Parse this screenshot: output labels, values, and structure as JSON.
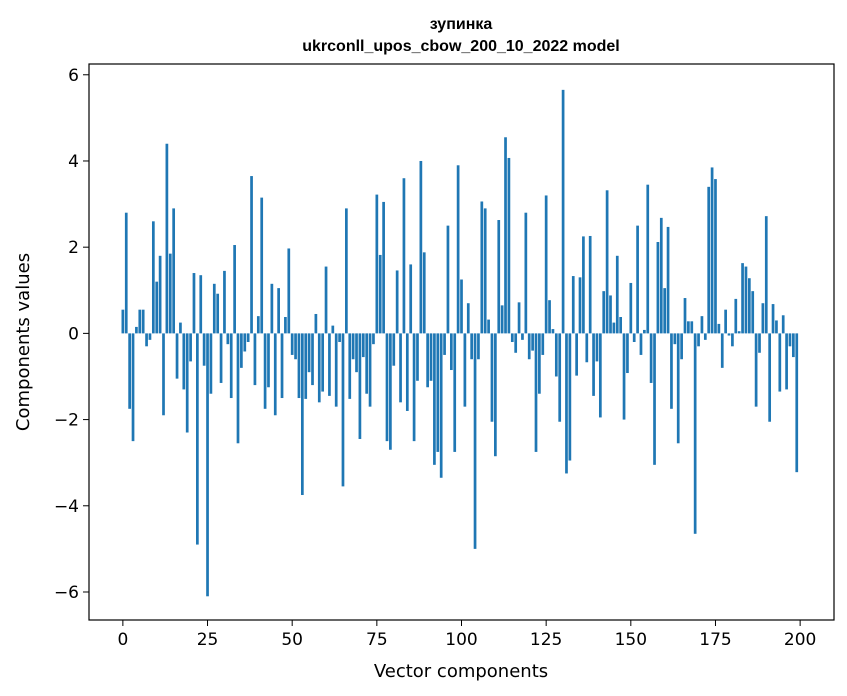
{
  "chart_data": {
    "type": "bar",
    "title_line1": "зупинка",
    "title_line2": "ukrconll_upos_cbow_200_10_2022 model",
    "xlabel": "Vector components",
    "ylabel": "Components values",
    "xlim": [
      -10,
      210
    ],
    "ylim": [
      -6.65,
      6.25
    ],
    "xticks": [
      0,
      25,
      50,
      75,
      100,
      125,
      150,
      175,
      200
    ],
    "xtick_labels": [
      "0",
      "25",
      "50",
      "75",
      "100",
      "125",
      "150",
      "175",
      "200"
    ],
    "yticks": [
      6,
      4,
      2,
      0,
      -2,
      -4,
      -6
    ],
    "ytick_labels": [
      "6",
      "4",
      "2",
      "0",
      "−2",
      "−4",
      "−6"
    ],
    "bar_color": "#1f77b4",
    "grid": false,
    "values": [
      0.55,
      2.8,
      -1.75,
      -2.5,
      0.15,
      0.55,
      0.55,
      -0.3,
      -0.15,
      2.6,
      1.2,
      1.8,
      -1.9,
      4.4,
      1.85,
      2.9,
      -1.05,
      0.25,
      -1.3,
      -2.3,
      -0.65,
      1.4,
      -4.9,
      1.35,
      -0.75,
      -6.1,
      -1.4,
      1.15,
      0.92,
      -1.15,
      1.45,
      -0.25,
      -1.5,
      2.05,
      -2.55,
      -0.8,
      -0.42,
      -0.2,
      3.65,
      -1.2,
      0.4,
      3.15,
      -1.75,
      -1.25,
      1.15,
      -1.9,
      1.05,
      -1.5,
      0.38,
      1.97,
      -0.5,
      -0.6,
      -1.5,
      -3.75,
      -1.52,
      -0.9,
      -1.2,
      0.45,
      -1.6,
      -1.35,
      1.55,
      -1.45,
      0.18,
      -1.7,
      -0.2,
      -3.55,
      2.9,
      -1.52,
      -0.6,
      -0.9,
      -2.45,
      -0.55,
      -1.4,
      -1.7,
      -0.25,
      3.22,
      1.82,
      3.05,
      -2.5,
      -2.7,
      -0.75,
      1.46,
      -1.6,
      3.6,
      -1.8,
      1.6,
      -2.5,
      -1.1,
      4.0,
      1.88,
      -1.25,
      -1.1,
      -3.05,
      -2.75,
      -3.35,
      -0.5,
      2.5,
      -0.85,
      -2.75,
      3.9,
      1.25,
      -1.7,
      0.7,
      -0.6,
      -5.0,
      -0.6,
      3.06,
      2.9,
      0.32,
      -2.05,
      -2.85,
      2.63,
      0.65,
      4.55,
      4.07,
      -0.2,
      -0.45,
      0.72,
      -0.15,
      2.8,
      -0.6,
      -0.4,
      -2.75,
      -1.4,
      -0.5,
      3.2,
      0.77,
      0.1,
      -1.0,
      -2.05,
      5.65,
      -3.25,
      -2.95,
      1.33,
      -0.98,
      1.3,
      2.25,
      -0.67,
      2.26,
      -1.45,
      -0.65,
      -1.95,
      0.98,
      3.32,
      0.88,
      0.25,
      1.8,
      0.38,
      -2.0,
      -0.92,
      1.17,
      -0.2,
      2.5,
      -0.5,
      0.08,
      3.45,
      -1.15,
      -3.05,
      2.12,
      2.68,
      1.05,
      2.47,
      -1.75,
      -0.25,
      -2.55,
      -0.6,
      0.82,
      0.28,
      0.28,
      -4.65,
      -0.3,
      0.4,
      -0.15,
      3.4,
      3.85,
      3.58,
      0.22,
      -0.8,
      0.55,
      -0.05,
      -0.3,
      0.8,
      0.05,
      1.63,
      1.55,
      1.28,
      0.98,
      -1.7,
      -0.45,
      0.7,
      2.72,
      -2.05,
      0.68,
      0.3,
      -1.35,
      0.42,
      -1.3,
      -0.3,
      -0.55,
      -3.22
    ]
  }
}
